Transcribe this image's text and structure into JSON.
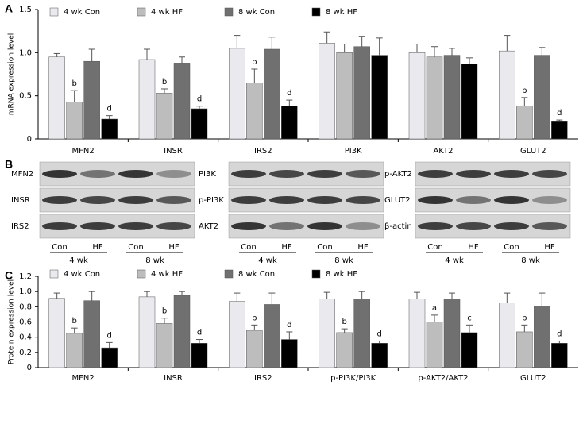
{
  "chart_data": [
    {
      "type": "bar",
      "panel": "A",
      "y_label": "mRNA expression level",
      "categories": [
        "MFN2",
        "INSR",
        "IRS2",
        "PI3K",
        "AKT2",
        "GLUT2"
      ],
      "ylim": [
        0,
        1.5
      ],
      "yticks": [
        0,
        0.5,
        {
          "value": 1,
          "label": "1.0"
        },
        1.5
      ],
      "series": [
        {
          "name": "4 wk Con",
          "color": "#e9e9ee",
          "values": [
            0.95,
            0.92,
            1.05,
            1.11,
            1.0,
            1.02
          ],
          "errors": [
            0.04,
            0.12,
            0.15,
            0.13,
            0.1,
            0.18
          ],
          "sig_labels": [
            null,
            null,
            null,
            null,
            null,
            null
          ]
        },
        {
          "name": "4 wk HF",
          "color": "#bdbdbd",
          "values": [
            0.43,
            0.53,
            0.65,
            1.0,
            0.95,
            0.38
          ],
          "errors": [
            0.13,
            0.05,
            0.16,
            0.1,
            0.12,
            0.1
          ],
          "sig_labels": [
            "b",
            "b",
            "b",
            null,
            null,
            "b"
          ]
        },
        {
          "name": "8 wk Con",
          "color": "#707070",
          "values": [
            0.9,
            0.88,
            1.04,
            1.07,
            0.97,
            0.97
          ],
          "errors": [
            0.14,
            0.07,
            0.14,
            0.12,
            0.08,
            0.09
          ],
          "sig_labels": [
            null,
            null,
            null,
            null,
            null,
            null
          ]
        },
        {
          "name": "8 wk HF",
          "color": "#000000",
          "values": [
            0.23,
            0.35,
            0.38,
            0.97,
            0.87,
            0.2
          ],
          "errors": [
            0.04,
            0.03,
            0.07,
            0.2,
            0.07,
            0.02
          ],
          "sig_labels": [
            "d",
            "d",
            "d",
            null,
            null,
            "d"
          ]
        }
      ]
    },
    {
      "type": "bar",
      "panel": "C",
      "y_label": "Protein expression level",
      "categories": [
        "MFN2",
        "INSR",
        "IRS2",
        "p-PI3K/PI3K",
        "p-AKT2/AKT2",
        "GLUT2"
      ],
      "ylim": [
        0,
        1.2
      ],
      "yticks": [
        0,
        0.2,
        0.4,
        0.6,
        0.8,
        {
          "value": 1,
          "label": "1.0"
        },
        1.2
      ],
      "series": [
        {
          "name": "4 wk Con",
          "color": "#e9e9ee",
          "values": [
            0.91,
            0.93,
            0.87,
            0.9,
            0.9,
            0.85
          ],
          "errors": [
            0.07,
            0.07,
            0.11,
            0.09,
            0.09,
            0.13
          ],
          "sig_labels": [
            null,
            null,
            null,
            null,
            null,
            null
          ]
        },
        {
          "name": "4 wk HF",
          "color": "#bdbdbd",
          "values": [
            0.45,
            0.58,
            0.49,
            0.46,
            0.6,
            0.47
          ],
          "errors": [
            0.07,
            0.07,
            0.07,
            0.05,
            0.09,
            0.09
          ],
          "sig_labels": [
            "b",
            "b",
            "b",
            "b",
            "a",
            "b"
          ]
        },
        {
          "name": "8 wk Con",
          "color": "#707070",
          "values": [
            0.88,
            0.95,
            0.83,
            0.9,
            0.9,
            0.81
          ],
          "errors": [
            0.12,
            0.05,
            0.15,
            0.1,
            0.08,
            0.17
          ],
          "sig_labels": [
            null,
            null,
            null,
            null,
            null,
            null
          ]
        },
        {
          "name": "8 wk HF",
          "color": "#000000",
          "values": [
            0.26,
            0.32,
            0.37,
            0.32,
            0.46,
            0.32
          ],
          "errors": [
            0.07,
            0.05,
            0.1,
            0.03,
            0.1,
            0.03
          ],
          "sig_labels": [
            "d",
            "d",
            "d",
            "d",
            "c",
            "d"
          ]
        }
      ]
    }
  ],
  "blots": {
    "panel": "B",
    "blocks": [
      {
        "rows": [
          "MFN2",
          "INSR",
          "IRS2"
        ]
      },
      {
        "rows": [
          "PI3K",
          "p-PI3K",
          "AKT2"
        ]
      },
      {
        "rows": [
          "p-AKT2",
          "GLUT2",
          "β-actin"
        ]
      }
    ],
    "lanes": [
      "Con",
      "HF",
      "Con",
      "HF"
    ],
    "weeks": [
      "4 wk",
      "8 wk"
    ]
  }
}
